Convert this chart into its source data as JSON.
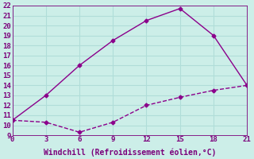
{
  "line1_x": [
    0,
    3,
    6,
    9,
    12,
    15,
    18,
    21
  ],
  "line1_y": [
    10.5,
    13.0,
    16.0,
    18.5,
    20.5,
    21.7,
    19.0,
    14.0
  ],
  "line2_x": [
    0,
    3,
    6,
    9,
    12,
    15,
    18,
    21
  ],
  "line2_y": [
    10.5,
    10.3,
    9.3,
    10.3,
    12.0,
    12.8,
    13.5,
    14.0
  ],
  "line_color": "#8b008b",
  "xlabel": "Windchill (Refroidissement éolien,°C)",
  "xlim": [
    0,
    21
  ],
  "ylim": [
    9,
    22
  ],
  "xticks": [
    0,
    3,
    6,
    9,
    12,
    15,
    18,
    21
  ],
  "yticks": [
    9,
    10,
    11,
    12,
    13,
    14,
    15,
    16,
    17,
    18,
    19,
    20,
    21,
    22
  ],
  "bg_color": "#cceee8",
  "grid_color": "#b0ddd8",
  "font_color": "#7b007b",
  "font_family": "monospace",
  "tick_fontsize": 6.5,
  "xlabel_fontsize": 7.0
}
